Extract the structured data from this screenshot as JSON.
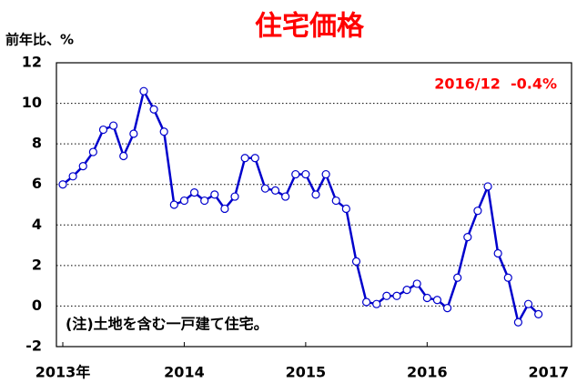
{
  "chart_data": {
    "type": "line",
    "title": "住宅価格",
    "y_label": "前年比、%",
    "annotation": "2016/12  -0.4%",
    "note": "(注)土地を含む一戸建て住宅。",
    "categories": [
      "2013年",
      null,
      null,
      null,
      null,
      null,
      null,
      null,
      null,
      null,
      null,
      null,
      "2014",
      null,
      null,
      null,
      null,
      null,
      null,
      null,
      null,
      null,
      null,
      null,
      "2015",
      null,
      null,
      null,
      null,
      null,
      null,
      null,
      null,
      null,
      null,
      null,
      "2016",
      null,
      null,
      null,
      null,
      null,
      null,
      null,
      null,
      null,
      null,
      null
    ],
    "end_label": "2017",
    "series": [
      {
        "name": "住宅価格",
        "color": "#0000cc",
        "values": [
          6.0,
          6.4,
          6.9,
          7.6,
          8.7,
          8.9,
          7.4,
          8.5,
          10.6,
          9.7,
          8.6,
          5.0,
          5.2,
          5.6,
          5.2,
          5.5,
          4.8,
          5.4,
          7.3,
          7.3,
          5.8,
          5.7,
          5.4,
          6.5,
          6.5,
          5.5,
          6.5,
          5.2,
          4.8,
          2.2,
          0.2,
          0.1,
          0.5,
          0.5,
          0.8,
          1.1,
          0.4,
          0.3,
          -0.1,
          1.4,
          3.4,
          4.7,
          5.9,
          2.6,
          1.4,
          -0.8,
          0.1,
          -0.4
        ]
      }
    ],
    "ylim": [
      -2,
      12
    ],
    "yticks": [
      -2,
      0,
      2,
      4,
      6,
      8,
      10,
      12
    ],
    "grid": true
  }
}
